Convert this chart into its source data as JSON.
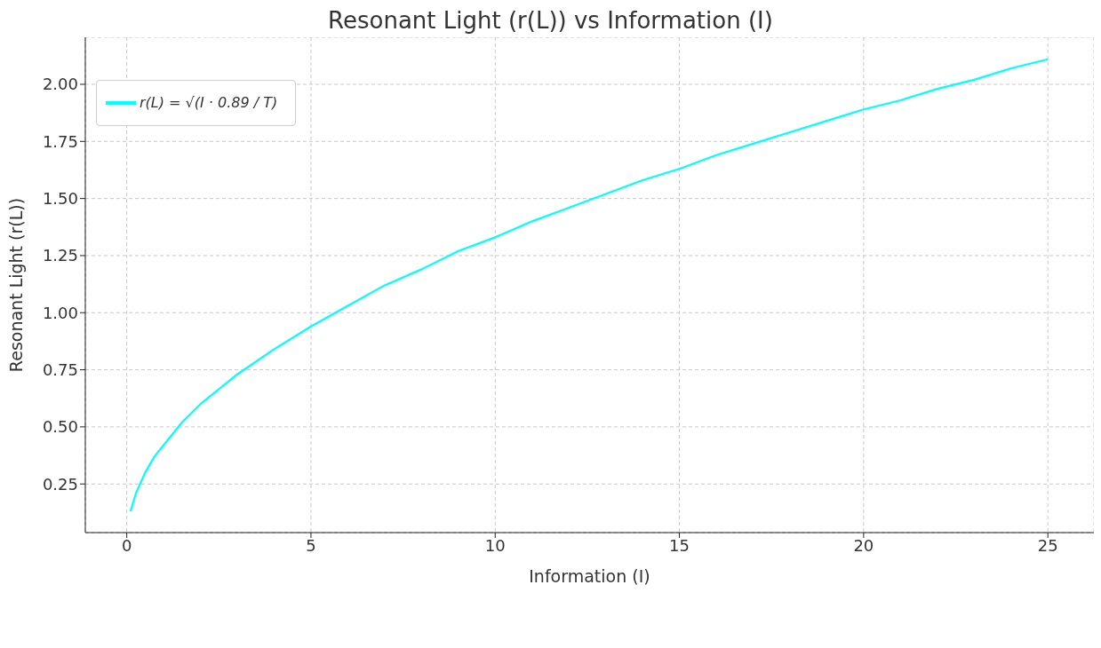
{
  "chart_data": {
    "type": "line",
    "title": "Resonant Light (r(L)) vs Information (I)",
    "xlabel": "Information (I)",
    "ylabel": "Resonant Light (r(L))",
    "x": [
      0.1,
      0.25,
      0.5,
      0.75,
      1,
      1.5,
      2,
      3,
      4,
      5,
      6,
      7,
      8,
      9,
      10,
      11,
      12,
      13,
      14,
      15,
      16,
      17,
      18,
      19,
      20,
      21,
      22,
      23,
      24,
      25
    ],
    "series": [
      {
        "name": "r(L) = √(I · 0.89 / T)",
        "color": "#00ffff",
        "values": [
          0.13,
          0.21,
          0.3,
          0.37,
          0.42,
          0.52,
          0.6,
          0.73,
          0.84,
          0.94,
          1.03,
          1.12,
          1.19,
          1.27,
          1.33,
          1.4,
          1.46,
          1.52,
          1.58,
          1.63,
          1.69,
          1.74,
          1.79,
          1.84,
          1.89,
          1.93,
          1.98,
          2.02,
          2.07,
          2.11
        ]
      }
    ],
    "xlim": [
      -1.125,
      26.25
    ],
    "xticks": [
      0,
      5,
      10,
      15,
      20,
      25
    ],
    "ylim": [
      0.037,
      2.206
    ],
    "yticks": [
      {
        "value": 0.25,
        "label": "0.25"
      },
      {
        "value": 0.5,
        "label": "0.50"
      },
      {
        "value": 0.75,
        "label": "0.75"
      },
      {
        "value": 1,
        "label": "1.00"
      },
      {
        "value": 1.25,
        "label": "1.25"
      },
      {
        "value": 1.5,
        "label": "1.50"
      },
      {
        "value": 1.75,
        "label": "1.75"
      },
      {
        "value": 2,
        "label": "2.00"
      }
    ],
    "grid": true,
    "legend": "top left",
    "marker": "none",
    "line_style": "solid"
  }
}
